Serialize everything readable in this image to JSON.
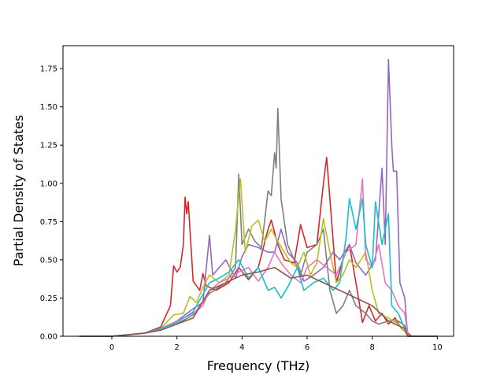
{
  "chart_data": {
    "type": "line",
    "xlabel": "Frequency (THz)",
    "ylabel": "Partial Density of States",
    "xlim": [
      -1.5,
      10.5
    ],
    "ylim": [
      0,
      1.9
    ],
    "xticks": [
      "0",
      "2",
      "4",
      "6",
      "8",
      "10"
    ],
    "yticks": [
      "0.00",
      "0.25",
      "0.50",
      "0.75",
      "1.00",
      "1.25",
      "1.50",
      "1.75"
    ],
    "grid": false,
    "legend": "none",
    "series": [
      {
        "color": "#d62728",
        "points": [
          [
            -1,
            0
          ],
          [
            0,
            0
          ],
          [
            0.5,
            0.01
          ],
          [
            1,
            0.02
          ],
          [
            1.5,
            0.06
          ],
          [
            1.8,
            0.2
          ],
          [
            1.9,
            0.46
          ],
          [
            2.0,
            0.42
          ],
          [
            2.1,
            0.45
          ],
          [
            2.2,
            0.6
          ],
          [
            2.25,
            0.91
          ],
          [
            2.3,
            0.8
          ],
          [
            2.35,
            0.88
          ],
          [
            2.4,
            0.7
          ],
          [
            2.5,
            0.36
          ],
          [
            2.7,
            0.3
          ],
          [
            2.8,
            0.41
          ],
          [
            2.9,
            0.33
          ],
          [
            3.2,
            0.3
          ],
          [
            3.6,
            0.35
          ],
          [
            3.9,
            0.45
          ],
          [
            4.2,
            0.37
          ],
          [
            4.5,
            0.45
          ],
          [
            4.8,
            0.7
          ],
          [
            4.9,
            0.76
          ],
          [
            5.1,
            0.6
          ],
          [
            5.3,
            0.5
          ],
          [
            5.6,
            0.48
          ],
          [
            5.8,
            0.73
          ],
          [
            6.0,
            0.58
          ],
          [
            6.3,
            0.6
          ],
          [
            6.5,
            1.0
          ],
          [
            6.6,
            1.17
          ],
          [
            6.7,
            0.9
          ],
          [
            6.9,
            0.35
          ],
          [
            7.1,
            0.5
          ],
          [
            7.3,
            0.6
          ],
          [
            7.5,
            0.35
          ],
          [
            7.7,
            0.09
          ],
          [
            7.9,
            0.2
          ],
          [
            8.1,
            0.1
          ],
          [
            8.3,
            0.15
          ],
          [
            8.5,
            0.08
          ],
          [
            8.7,
            0.12
          ],
          [
            8.9,
            0.05
          ],
          [
            9.1,
            0.02
          ],
          [
            9.2,
            0
          ],
          [
            10,
            0
          ]
        ]
      },
      {
        "color": "#9467bd",
        "points": [
          [
            -1,
            0
          ],
          [
            0,
            0
          ],
          [
            0.5,
            0.01
          ],
          [
            1,
            0.02
          ],
          [
            1.5,
            0.05
          ],
          [
            2.0,
            0.1
          ],
          [
            2.5,
            0.18
          ],
          [
            2.8,
            0.22
          ],
          [
            3.0,
            0.66
          ],
          [
            3.1,
            0.4
          ],
          [
            3.3,
            0.45
          ],
          [
            3.5,
            0.5
          ],
          [
            3.8,
            0.38
          ],
          [
            4.0,
            0.52
          ],
          [
            4.2,
            0.6
          ],
          [
            4.5,
            0.58
          ],
          [
            4.8,
            0.55
          ],
          [
            5.0,
            0.55
          ],
          [
            5.2,
            0.7
          ],
          [
            5.4,
            0.55
          ],
          [
            5.7,
            0.48
          ],
          [
            5.9,
            0.36
          ],
          [
            6.2,
            0.4
          ],
          [
            6.5,
            0.45
          ],
          [
            6.8,
            0.55
          ],
          [
            7.0,
            0.5
          ],
          [
            7.3,
            0.6
          ],
          [
            7.5,
            0.48
          ],
          [
            7.8,
            0.4
          ],
          [
            8.1,
            0.5
          ],
          [
            8.3,
            1.1
          ],
          [
            8.4,
            0.6
          ],
          [
            8.5,
            1.81
          ],
          [
            8.6,
            1.25
          ],
          [
            8.65,
            1.08
          ],
          [
            8.75,
            1.08
          ],
          [
            8.85,
            0.35
          ],
          [
            9.0,
            0.25
          ],
          [
            9.05,
            0.1
          ],
          [
            9.1,
            0
          ],
          [
            10,
            0
          ]
        ]
      },
      {
        "color": "#7f7f7f",
        "points": [
          [
            -1,
            0
          ],
          [
            0,
            0
          ],
          [
            0.5,
            0.01
          ],
          [
            1,
            0.02
          ],
          [
            1.5,
            0.04
          ],
          [
            2.0,
            0.08
          ],
          [
            2.5,
            0.14
          ],
          [
            3.0,
            0.28
          ],
          [
            3.5,
            0.35
          ],
          [
            3.8,
            0.45
          ],
          [
            3.9,
            1.06
          ],
          [
            4.0,
            0.6
          ],
          [
            4.2,
            0.7
          ],
          [
            4.4,
            0.62
          ],
          [
            4.6,
            0.58
          ],
          [
            4.8,
            0.95
          ],
          [
            4.9,
            0.92
          ],
          [
            5.0,
            1.2
          ],
          [
            5.05,
            1.1
          ],
          [
            5.1,
            1.49
          ],
          [
            5.2,
            0.9
          ],
          [
            5.4,
            0.6
          ],
          [
            5.6,
            0.5
          ],
          [
            5.8,
            0.4
          ],
          [
            6.0,
            0.55
          ],
          [
            6.3,
            0.6
          ],
          [
            6.5,
            0.7
          ],
          [
            6.7,
            0.3
          ],
          [
            6.9,
            0.15
          ],
          [
            7.1,
            0.2
          ],
          [
            7.3,
            0.3
          ],
          [
            7.5,
            0.2
          ],
          [
            7.8,
            0.15
          ],
          [
            8.0,
            0.1
          ],
          [
            8.2,
            0.08
          ],
          [
            8.5,
            0.1
          ],
          [
            8.8,
            0.1
          ],
          [
            9.0,
            0.07
          ],
          [
            9.1,
            0
          ],
          [
            10,
            0
          ]
        ]
      },
      {
        "color": "#bcbd22",
        "points": [
          [
            -1,
            0
          ],
          [
            0,
            0
          ],
          [
            0.5,
            0.01
          ],
          [
            1,
            0.02
          ],
          [
            1.5,
            0.05
          ],
          [
            1.9,
            0.14
          ],
          [
            2.2,
            0.15
          ],
          [
            2.4,
            0.26
          ],
          [
            2.6,
            0.22
          ],
          [
            2.8,
            0.32
          ],
          [
            3.0,
            0.4
          ],
          [
            3.3,
            0.35
          ],
          [
            3.6,
            0.4
          ],
          [
            3.8,
            0.7
          ],
          [
            3.95,
            1.03
          ],
          [
            4.1,
            0.55
          ],
          [
            4.3,
            0.72
          ],
          [
            4.5,
            0.76
          ],
          [
            4.7,
            0.62
          ],
          [
            4.9,
            0.7
          ],
          [
            5.1,
            0.62
          ],
          [
            5.3,
            0.55
          ],
          [
            5.5,
            0.48
          ],
          [
            5.7,
            0.45
          ],
          [
            5.9,
            0.55
          ],
          [
            6.1,
            0.4
          ],
          [
            6.3,
            0.48
          ],
          [
            6.5,
            0.77
          ],
          [
            6.7,
            0.55
          ],
          [
            6.9,
            0.35
          ],
          [
            7.1,
            0.4
          ],
          [
            7.3,
            0.5
          ],
          [
            7.5,
            0.45
          ],
          [
            7.8,
            0.55
          ],
          [
            8.0,
            0.3
          ],
          [
            8.2,
            0.15
          ],
          [
            8.5,
            0.12
          ],
          [
            8.8,
            0.08
          ],
          [
            9.0,
            0.03
          ],
          [
            9.1,
            0
          ],
          [
            10,
            0
          ]
        ]
      },
      {
        "color": "#e377c2",
        "points": [
          [
            -1,
            0
          ],
          [
            0,
            0
          ],
          [
            0.5,
            0.01
          ],
          [
            1,
            0.02
          ],
          [
            1.5,
            0.05
          ],
          [
            2.0,
            0.1
          ],
          [
            2.5,
            0.15
          ],
          [
            2.8,
            0.2
          ],
          [
            3.0,
            0.3
          ],
          [
            3.3,
            0.35
          ],
          [
            3.6,
            0.38
          ],
          [
            3.9,
            0.42
          ],
          [
            4.2,
            0.45
          ],
          [
            4.5,
            0.36
          ],
          [
            4.8,
            0.45
          ],
          [
            5.0,
            0.55
          ],
          [
            5.2,
            0.48
          ],
          [
            5.5,
            0.4
          ],
          [
            5.8,
            0.35
          ],
          [
            6.0,
            0.45
          ],
          [
            6.3,
            0.5
          ],
          [
            6.6,
            0.45
          ],
          [
            6.9,
            0.4
          ],
          [
            7.2,
            0.55
          ],
          [
            7.5,
            0.6
          ],
          [
            7.7,
            1.03
          ],
          [
            7.8,
            0.5
          ],
          [
            8.0,
            0.45
          ],
          [
            8.2,
            0.6
          ],
          [
            8.4,
            0.35
          ],
          [
            8.6,
            0.3
          ],
          [
            8.8,
            0.2
          ],
          [
            9.0,
            0.15
          ],
          [
            9.1,
            0
          ],
          [
            10,
            0
          ]
        ]
      },
      {
        "color": "#17becf",
        "points": [
          [
            -1,
            0
          ],
          [
            0,
            0
          ],
          [
            0.5,
            0.01
          ],
          [
            1,
            0.02
          ],
          [
            1.5,
            0.05
          ],
          [
            2.0,
            0.09
          ],
          [
            2.5,
            0.16
          ],
          [
            3.0,
            0.35
          ],
          [
            3.3,
            0.38
          ],
          [
            3.6,
            0.42
          ],
          [
            3.9,
            0.5
          ],
          [
            4.2,
            0.38
          ],
          [
            4.5,
            0.45
          ],
          [
            4.8,
            0.3
          ],
          [
            5.0,
            0.32
          ],
          [
            5.2,
            0.25
          ],
          [
            5.4,
            0.32
          ],
          [
            5.7,
            0.45
          ],
          [
            5.9,
            0.3
          ],
          [
            6.2,
            0.35
          ],
          [
            6.5,
            0.38
          ],
          [
            6.8,
            0.3
          ],
          [
            7.0,
            0.35
          ],
          [
            7.2,
            0.65
          ],
          [
            7.3,
            0.9
          ],
          [
            7.5,
            0.7
          ],
          [
            7.7,
            0.9
          ],
          [
            7.8,
            0.6
          ],
          [
            8.0,
            0.45
          ],
          [
            8.1,
            0.88
          ],
          [
            8.3,
            0.6
          ],
          [
            8.5,
            0.8
          ],
          [
            8.6,
            0.2
          ],
          [
            8.8,
            0.15
          ],
          [
            9.0,
            0.05
          ],
          [
            9.1,
            0
          ],
          [
            10,
            0
          ]
        ]
      },
      {
        "color": "#8c564b",
        "points": [
          [
            -1,
            0
          ],
          [
            0,
            0
          ],
          [
            0.5,
            0.01
          ],
          [
            1,
            0.02
          ],
          [
            1.5,
            0.04
          ],
          [
            2.0,
            0.08
          ],
          [
            2.5,
            0.12
          ],
          [
            3.0,
            0.3
          ],
          [
            3.5,
            0.35
          ],
          [
            4.0,
            0.4
          ],
          [
            4.5,
            0.42
          ],
          [
            5.0,
            0.45
          ],
          [
            5.5,
            0.38
          ],
          [
            6.0,
            0.4
          ],
          [
            6.5,
            0.35
          ],
          [
            7.0,
            0.3
          ],
          [
            7.5,
            0.25
          ],
          [
            8.0,
            0.2
          ],
          [
            8.5,
            0.1
          ],
          [
            9.0,
            0.05
          ],
          [
            9.1,
            0
          ],
          [
            10,
            0
          ]
        ]
      }
    ]
  }
}
